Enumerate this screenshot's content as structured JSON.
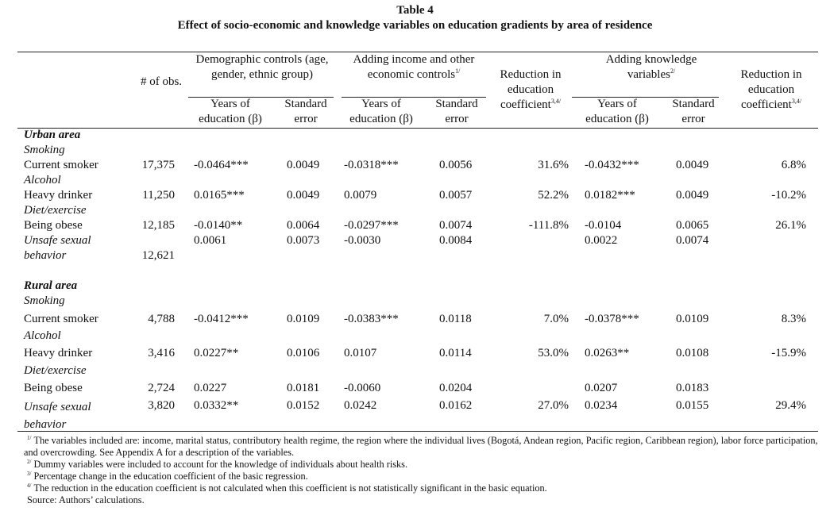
{
  "title": "Table 4",
  "subtitle": "Effect of socio-economic and knowledge variables on education gradients by area of residence",
  "header": {
    "obs": "# of obs.",
    "groups": [
      {
        "label": "Demographic controls (age, gender, ethnic group)"
      },
      {
        "label": "Adding income and other economic controls",
        "note": "1/"
      },
      {
        "label": "Reduction in education coefficient",
        "note": "3,4/"
      },
      {
        "label": "Adding knowledge variables",
        "note": "2/"
      },
      {
        "label": "Reduction in education coefficient",
        "note": "3,4/"
      }
    ],
    "sub": [
      "Years of education (β)",
      "Standard error",
      "Years of education (β)",
      "Standard error",
      "Years of education (β)",
      "Standard error"
    ]
  },
  "sections": [
    {
      "label": "Urban area",
      "rows": [
        {
          "category": "Smoking",
          "label": "Current smoker",
          "obs": "17,375",
          "cells": [
            "-0.0464***",
            "0.0049",
            "-0.0318***",
            "0.0056",
            "31.6%",
            "-0.0432***",
            "0.0049",
            "6.8%"
          ]
        },
        {
          "category": "Alcohol",
          "label": "Heavy drinker",
          "obs": "11,250",
          "cells": [
            "0.0165***",
            "0.0049",
            "0.0079",
            "0.0057",
            "52.2%",
            "0.0182***",
            "0.0049",
            "-10.2%"
          ]
        },
        {
          "category": "Diet/exercise",
          "label": "Being obese",
          "obs": "12,185",
          "cells": [
            "-0.0140**",
            "0.0064",
            "-0.0297***",
            "0.0074",
            "-111.8%",
            "-0.0104",
            "0.0065",
            "26.1%"
          ]
        },
        {
          "category": "Unsafe sexual behavior",
          "obs": "12,621",
          "cells": [
            "0.0061",
            "0.0073",
            "-0.0030",
            "0.0084",
            null,
            "0.0022",
            "0.0074",
            null
          ]
        }
      ]
    },
    {
      "label": "Rural area",
      "rows": [
        {
          "category": "Smoking",
          "label": "Current smoker",
          "obs": "4,788",
          "cells": [
            "-0.0412***",
            "0.0109",
            "-0.0383***",
            "0.0118",
            "7.0%",
            "-0.0378***",
            "0.0109",
            "8.3%"
          ]
        },
        {
          "category": "Alcohol",
          "label": "Heavy drinker",
          "obs": "3,416",
          "cells": [
            "0.0227**",
            "0.0106",
            "0.0107",
            "0.0114",
            "53.0%",
            "0.0263**",
            "0.0108",
            "-15.9%"
          ]
        },
        {
          "category": "Diet/exercise",
          "label": "Being obese",
          "obs": "2,724",
          "cells": [
            "0.0227",
            "0.0181",
            "-0.0060",
            "0.0204",
            null,
            "0.0207",
            "0.0183",
            null
          ]
        },
        {
          "category": "Unsafe sexual behavior",
          "obs": "3,820",
          "cells": [
            "0.0332**",
            "0.0152",
            "0.0242",
            "0.0162",
            "27.0%",
            "0.0234",
            "0.0155",
            "29.4%"
          ]
        }
      ]
    }
  ],
  "footnotes": [
    {
      "marker": "1/",
      "text": "The variables included are: income, marital status, contributory health regime, the region where the individual lives (Bogotá, Andean region, Pacific region, Caribbean region), labor force participation, and overcrowding. See Appendix A for a description of the variables."
    },
    {
      "marker": "2/",
      "text": "Dummy variables were included to account for the knowledge of individuals about health risks."
    },
    {
      "marker": "3/",
      "text": "Percentage change in the education coefficient of the basic regression."
    },
    {
      "marker": "4/",
      "text": "The reduction in the education coefficient is not calculated when this coefficient is not statistically significant in the basic equation."
    }
  ],
  "source": "Source: Authors’ calculations."
}
